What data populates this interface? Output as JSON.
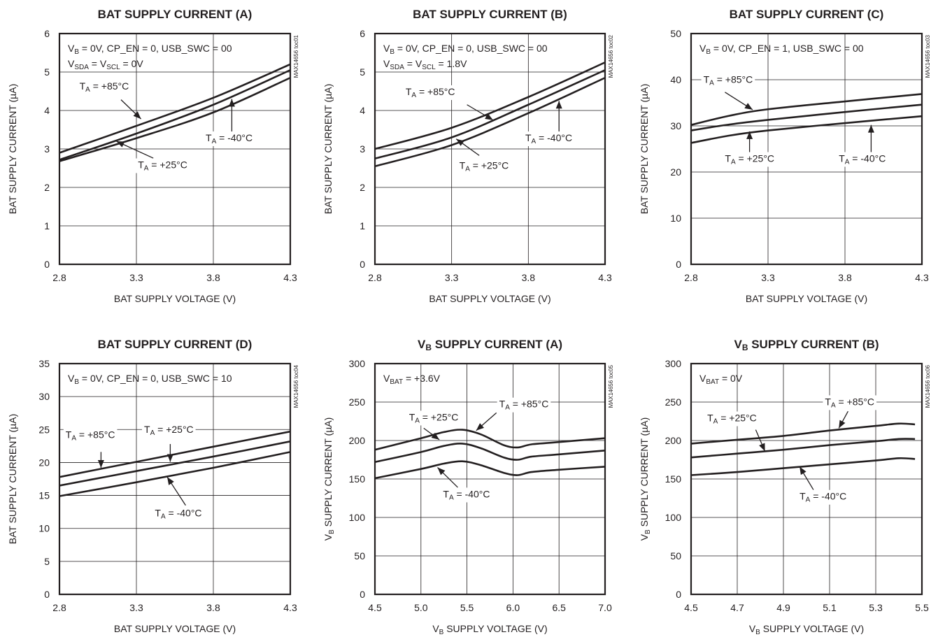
{
  "chart_data": [
    {
      "type": "line",
      "title": "BAT SUPPLY CURRENT (A)",
      "xlabel": "BAT SUPPLY VOLTAGE (V)",
      "ylabel": "BAT SUPPLY CURRENT (µA)",
      "xlim": [
        2.8,
        4.3
      ],
      "ylim": [
        0,
        6
      ],
      "xticks": [
        "2.8",
        "3.3",
        "3.8",
        "4.3"
      ],
      "yticks": [
        "0",
        "1",
        "2",
        "3",
        "4",
        "5",
        "6"
      ],
      "grid": true,
      "code": "MAX14656 toc01",
      "conditions": [
        [
          {
            "t": "V"
          },
          {
            "t": "B",
            "sub": true
          },
          {
            "t": " = 0V, CP_EN = 0, USB_SWC = 00"
          }
        ],
        [
          {
            "t": "V"
          },
          {
            "t": "SDA",
            "sub": true
          },
          {
            "t": " = V"
          },
          {
            "t": "SCL",
            "sub": true
          },
          {
            "t": " = 0V"
          }
        ]
      ],
      "series": [
        {
          "x": [
            2.8,
            3.3,
            3.8,
            4.3
          ],
          "y": [
            2.9,
            3.6,
            4.33,
            5.2
          ]
        },
        {
          "x": [
            2.8,
            3.3,
            3.8,
            4.3
          ],
          "y": [
            2.72,
            3.4,
            4.15,
            5.05
          ]
        },
        {
          "x": [
            2.8,
            3.3,
            3.8,
            4.3
          ],
          "y": [
            2.68,
            3.28,
            3.95,
            4.85
          ]
        }
      ],
      "annotations": [
        {
          "parts": [
            {
              "t": "T"
            },
            {
              "t": "A",
              "sub": true
            },
            {
              "t": " = +85°C"
            }
          ],
          "tx": 2.93,
          "ty": 4.55,
          "ax": [
            3.2,
            3.33
          ],
          "ay": [
            4.28,
            3.78
          ]
        },
        {
          "parts": [
            {
              "t": "T"
            },
            {
              "t": "A",
              "sub": true
            },
            {
              "t": " = +25°C"
            }
          ],
          "tx": 3.31,
          "ty": 2.5,
          "ax": [
            3.41,
            3.17
          ],
          "ay": [
            2.76,
            3.2
          ]
        },
        {
          "parts": [
            {
              "t": "T"
            },
            {
              "t": "A",
              "sub": true
            },
            {
              "t": " = -40°C"
            }
          ],
          "tx": 3.75,
          "ty": 3.2,
          "ax": [
            3.92,
            3.92
          ],
          "ay": [
            3.45,
            4.3
          ]
        }
      ]
    },
    {
      "type": "line",
      "title": "BAT SUPPLY CURRENT (B)",
      "xlabel": "BAT SUPPLY VOLTAGE (V)",
      "ylabel": "BAT SUPPLY CURRENT (µA)",
      "xlim": [
        2.8,
        4.3
      ],
      "ylim": [
        0,
        6
      ],
      "xticks": [
        "2.8",
        "3.3",
        "3.8",
        "4.3"
      ],
      "yticks": [
        "0",
        "1",
        "2",
        "3",
        "4",
        "5",
        "6"
      ],
      "grid": true,
      "code": "MAX14656 toc02",
      "conditions": [
        [
          {
            "t": "V"
          },
          {
            "t": "B",
            "sub": true
          },
          {
            "t": " = 0V, CP_EN = 0, USB_SWC = 00"
          }
        ],
        [
          {
            "t": "V"
          },
          {
            "t": "SDA",
            "sub": true
          },
          {
            "t": " = V"
          },
          {
            "t": "SCL",
            "sub": true
          },
          {
            "t": " = 1.8V"
          }
        ]
      ],
      "series": [
        {
          "x": [
            2.8,
            3.3,
            3.8,
            4.3
          ],
          "y": [
            3.0,
            3.55,
            4.35,
            5.25
          ]
        },
        {
          "x": [
            2.8,
            3.3,
            3.8,
            4.3
          ],
          "y": [
            2.75,
            3.3,
            4.15,
            5.05
          ]
        },
        {
          "x": [
            2.8,
            3.3,
            3.8,
            4.3
          ],
          "y": [
            2.55,
            3.1,
            3.93,
            4.85
          ]
        }
      ],
      "annotations": [
        {
          "parts": [
            {
              "t": "T"
            },
            {
              "t": "A",
              "sub": true
            },
            {
              "t": " = +85°C"
            }
          ],
          "tx": 3.0,
          "ty": 4.4,
          "ax": [
            3.4,
            3.57
          ],
          "ay": [
            4.15,
            3.75
          ]
        },
        {
          "parts": [
            {
              "t": "T"
            },
            {
              "t": "A",
              "sub": true
            },
            {
              "t": " = +25°C"
            }
          ],
          "tx": 3.35,
          "ty": 2.48,
          "ax": [
            3.48,
            3.33
          ],
          "ay": [
            2.83,
            3.26
          ]
        },
        {
          "parts": [
            {
              "t": "T"
            },
            {
              "t": "A",
              "sub": true
            },
            {
              "t": " = -40°C"
            }
          ],
          "tx": 3.78,
          "ty": 3.2,
          "ax": [
            4.0,
            4.0
          ],
          "ay": [
            3.45,
            4.25
          ]
        }
      ]
    },
    {
      "type": "line",
      "title": "BAT SUPPLY CURRENT (C)",
      "xlabel": "BAT SUPPLY VOLTAGE (V)",
      "ylabel": "BAT SUPPLY CURRENT (µA)",
      "xlim": [
        2.8,
        4.3
      ],
      "ylim": [
        0,
        50
      ],
      "xticks": [
        "2.8",
        "3.3",
        "3.8",
        "4.3"
      ],
      "yticks": [
        "0",
        "10",
        "20",
        "30",
        "40",
        "50"
      ],
      "grid": true,
      "code": "MAX14656 toc03",
      "conditions": [
        [
          {
            "t": "V"
          },
          {
            "t": "B",
            "sub": true
          },
          {
            "t": " = 0V, CP_EN = 1, USB_SWC = 00"
          }
        ]
      ],
      "series": [
        {
          "x": [
            2.8,
            3.05,
            3.3,
            3.8,
            4.3
          ],
          "y": [
            30.2,
            32.2,
            33.6,
            35.3,
            36.9
          ]
        },
        {
          "x": [
            2.8,
            3.05,
            3.3,
            3.8,
            4.3
          ],
          "y": [
            29.0,
            30.3,
            31.3,
            33.0,
            34.6
          ]
        },
        {
          "x": [
            2.8,
            3.05,
            3.3,
            3.8,
            4.3
          ],
          "y": [
            26.3,
            27.9,
            29.0,
            30.6,
            32.1
          ]
        }
      ],
      "annotations": [
        {
          "parts": [
            {
              "t": "T"
            },
            {
              "t": "A",
              "sub": true
            },
            {
              "t": " = +85°C"
            }
          ],
          "tx": 2.88,
          "ty": 39.3,
          "ax": [
            3.02,
            3.2
          ],
          "ay": [
            37.3,
            33.5
          ]
        },
        {
          "parts": [
            {
              "t": "T"
            },
            {
              "t": "A",
              "sub": true
            },
            {
              "t": " = +25°C"
            }
          ],
          "tx": 3.02,
          "ty": 22.2,
          "ax": [
            3.18,
            3.18
          ],
          "ay": [
            24.2,
            28.8
          ]
        },
        {
          "parts": [
            {
              "t": "T"
            },
            {
              "t": "A",
              "sub": true
            },
            {
              "t": " = -40°C"
            }
          ],
          "tx": 3.76,
          "ty": 22.2,
          "ax": [
            3.97,
            3.97
          ],
          "ay": [
            24.2,
            30.2
          ]
        }
      ]
    },
    {
      "type": "line",
      "title": "BAT SUPPLY CURRENT (D)",
      "xlabel": "BAT SUPPLY VOLTAGE (V)",
      "ylabel": "BAT SUPPLY CURRENT (µA)",
      "xlim": [
        2.8,
        4.3
      ],
      "ylim": [
        0,
        35
      ],
      "xticks": [
        "2.8",
        "3.3",
        "3.8",
        "4.3"
      ],
      "yticks": [
        "0",
        "5",
        "10",
        "15",
        "20",
        "25",
        "30",
        "35"
      ],
      "grid": true,
      "code": "MAX14656 toc04",
      "conditions": [
        [
          {
            "t": "V"
          },
          {
            "t": "B",
            "sub": true
          },
          {
            "t": " = 0V, CP_EN = 0, USB_SWC = 10"
          }
        ]
      ],
      "series": [
        {
          "x": [
            2.8,
            3.3,
            3.8,
            4.3
          ],
          "y": [
            17.8,
            20.1,
            22.4,
            24.7
          ]
        },
        {
          "x": [
            2.8,
            3.3,
            3.8,
            4.3
          ],
          "y": [
            16.5,
            18.7,
            20.9,
            23.2
          ]
        },
        {
          "x": [
            2.8,
            3.3,
            3.8,
            4.3
          ],
          "y": [
            14.9,
            17.0,
            19.2,
            21.6
          ]
        }
      ],
      "annotations": [
        {
          "parts": [
            {
              "t": "T"
            },
            {
              "t": "A",
              "sub": true
            },
            {
              "t": " = +85°C"
            }
          ],
          "tx": 2.84,
          "ty": 23.7,
          "ax": [
            3.07,
            3.07
          ],
          "ay": [
            21.6,
            19.2
          ]
        },
        {
          "parts": [
            {
              "t": "T"
            },
            {
              "t": "A",
              "sub": true
            },
            {
              "t": " = +25°C"
            }
          ],
          "tx": 3.35,
          "ty": 24.5,
          "ax": [
            3.52,
            3.52
          ],
          "ay": [
            22.8,
            20.1
          ]
        },
        {
          "parts": [
            {
              "t": "T"
            },
            {
              "t": "A",
              "sub": true
            },
            {
              "t": " = -40°C"
            }
          ],
          "tx": 3.42,
          "ty": 11.8,
          "ax": [
            3.62,
            3.5
          ],
          "ay": [
            13.5,
            17.8
          ]
        }
      ]
    },
    {
      "type": "line",
      "title": [
        {
          "t": "V"
        },
        {
          "t": "B",
          "sub": true
        },
        {
          "t": " SUPPLY CURRENT (A)"
        }
      ],
      "xlabel": [
        {
          "t": "V"
        },
        {
          "t": "B",
          "sub": true
        },
        {
          "t": " SUPPLY VOLTAGE (V)"
        }
      ],
      "ylabel": [
        {
          "t": "V"
        },
        {
          "t": "B",
          "sub": true
        },
        {
          "t": " SUPPLY CURRENT (µA)"
        }
      ],
      "xlim": [
        4.5,
        7.0
      ],
      "ylim": [
        0,
        300
      ],
      "xticks": [
        "4.5",
        "5.0",
        "5.5",
        "6.0",
        "6.5",
        "7.0"
      ],
      "yticks": [
        "0",
        "50",
        "100",
        "150",
        "200",
        "250",
        "300"
      ],
      "grid": true,
      "code": "MAX14656 toc05",
      "conditions": [
        [
          {
            "t": "V"
          },
          {
            "t": "BAT",
            "sub": true
          },
          {
            "t": " = +3.6V"
          }
        ]
      ],
      "series": [
        {
          "x": [
            4.5,
            5.0,
            5.25,
            5.45,
            5.65,
            5.9,
            6.05,
            6.2,
            6.5,
            7.0
          ],
          "y": [
            188,
            203,
            211,
            214,
            208,
            194,
            191,
            195,
            198,
            203
          ]
        },
        {
          "x": [
            4.5,
            5.0,
            5.25,
            5.45,
            5.65,
            5.9,
            6.05,
            6.2,
            6.5,
            7.0
          ],
          "y": [
            172,
            185,
            193,
            196,
            190,
            178,
            175,
            179,
            182,
            187
          ]
        },
        {
          "x": [
            4.5,
            5.0,
            5.25,
            5.45,
            5.65,
            5.9,
            6.05,
            6.2,
            6.5,
            7.0
          ],
          "y": [
            151,
            163,
            170,
            173,
            168,
            158,
            155,
            159,
            162,
            166
          ]
        }
      ],
      "annotations": [
        {
          "parts": [
            {
              "t": "T"
            },
            {
              "t": "A",
              "sub": true
            },
            {
              "t": " = +85°C"
            }
          ],
          "tx": 5.85,
          "ty": 243,
          "ax": [
            5.82,
            5.6
          ],
          "ay": [
            236,
            213
          ]
        },
        {
          "parts": [
            {
              "t": "T"
            },
            {
              "t": "A",
              "sub": true
            },
            {
              "t": " = +25°C"
            }
          ],
          "tx": 4.87,
          "ty": 226,
          "ax": [
            5.03,
            5.2
          ],
          "ay": [
            216,
            201
          ]
        },
        {
          "parts": [
            {
              "t": "T"
            },
            {
              "t": "A",
              "sub": true
            },
            {
              "t": " = -40°C"
            }
          ],
          "tx": 5.24,
          "ty": 126,
          "ax": [
            5.4,
            5.18
          ],
          "ay": [
            139,
            165
          ]
        }
      ]
    },
    {
      "type": "line",
      "title": [
        {
          "t": "V"
        },
        {
          "t": "B",
          "sub": true
        },
        {
          "t": " SUPPLY CURRENT (B)"
        }
      ],
      "xlabel": [
        {
          "t": "V"
        },
        {
          "t": "B",
          "sub": true
        },
        {
          "t": " SUPPLY VOLTAGE (V)"
        }
      ],
      "ylabel": [
        {
          "t": "V"
        },
        {
          "t": "B",
          "sub": true
        },
        {
          "t": " SUPPLY CURRENT (µA)"
        }
      ],
      "xlim": [
        4.5,
        5.5
      ],
      "ylim": [
        0,
        300
      ],
      "xticks": [
        "4.5",
        "4.7",
        "4.9",
        "5.1",
        "5.3",
        "5.5"
      ],
      "yticks": [
        "0",
        "50",
        "100",
        "150",
        "200",
        "250",
        "300"
      ],
      "grid": true,
      "code": "MAX14656 toc06",
      "conditions": [
        [
          {
            "t": "V"
          },
          {
            "t": "BAT",
            "sub": true
          },
          {
            "t": " = 0V"
          }
        ]
      ],
      "series": [
        {
          "x": [
            4.5,
            4.7,
            4.9,
            5.1,
            5.3,
            5.4,
            5.47
          ],
          "y": [
            196,
            201,
            206,
            213,
            219,
            222,
            221
          ]
        },
        {
          "x": [
            4.5,
            4.7,
            4.9,
            5.1,
            5.3,
            5.4,
            5.47
          ],
          "y": [
            178,
            183,
            188,
            194,
            199,
            202,
            202
          ]
        },
        {
          "x": [
            4.5,
            4.7,
            4.9,
            5.1,
            5.3,
            5.4,
            5.47
          ],
          "y": [
            155,
            159,
            164,
            169,
            174,
            177,
            176
          ]
        }
      ],
      "annotations": [
        {
          "parts": [
            {
              "t": "T"
            },
            {
              "t": "A",
              "sub": true
            },
            {
              "t": " = +85°C"
            }
          ],
          "tx": 5.08,
          "ty": 246,
          "ax": [
            5.18,
            5.14
          ],
          "ay": [
            238,
            216
          ]
        },
        {
          "parts": [
            {
              "t": "T"
            },
            {
              "t": "A",
              "sub": true
            },
            {
              "t": " = +25°C"
            }
          ],
          "tx": 4.57,
          "ty": 225,
          "ax": [
            4.78,
            4.82
          ],
          "ay": [
            214,
            186
          ]
        },
        {
          "parts": [
            {
              "t": "T"
            },
            {
              "t": "A",
              "sub": true
            },
            {
              "t": " = -40°C"
            }
          ],
          "tx": 4.97,
          "ty": 123,
          "ax": [
            5.03,
            4.97
          ],
          "ay": [
            136,
            166
          ]
        }
      ]
    }
  ]
}
